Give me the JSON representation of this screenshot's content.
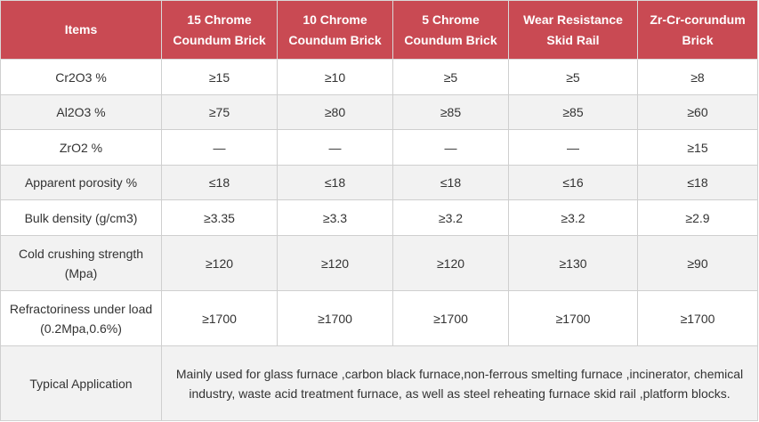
{
  "table": {
    "headers": [
      "Items",
      "15 Chrome Coundum Brick",
      "10 Chrome Coundum Brick",
      "5 Chrome Coundum Brick",
      "Wear Resistance Skid Rail",
      "Zr-Cr-corundum Brick"
    ],
    "rows": [
      {
        "label": "Cr2O3  %",
        "values": [
          "≥15",
          "≥10",
          "≥5",
          "≥5",
          "≥8"
        ]
      },
      {
        "label": "Al2O3  %",
        "values": [
          "≥75",
          "≥80",
          "≥85",
          "≥85",
          "≥60"
        ]
      },
      {
        "label": "ZrO2  %",
        "values": [
          "—",
          "—",
          "—",
          "—",
          "≥15"
        ]
      },
      {
        "label": "Apparent porosity %",
        "values": [
          "≤18",
          "≤18",
          "≤18",
          "≤16",
          "≤18"
        ]
      },
      {
        "label": "Bulk density (g/cm3)",
        "values": [
          "≥3.35",
          "≥3.3",
          "≥3.2",
          "≥3.2",
          "≥2.9"
        ]
      },
      {
        "label": "Cold crushing strength (Mpa)",
        "values": [
          "≥120",
          "≥120",
          "≥120",
          "≥130",
          "≥90"
        ]
      },
      {
        "label": "Refractoriness under load (0.2Mpa,0.6%)",
        "values": [
          "≥1700",
          "≥1700",
          "≥1700",
          "≥1700",
          "≥1700"
        ]
      }
    ],
    "application": {
      "label": "Typical Application",
      "text": "Mainly used for glass furnace ,carbon black furnace,non-ferrous smelting furnace ,incinerator, chemical industry, waste acid treatment furnace, as well as steel reheating furnace skid rail ,platform blocks."
    }
  }
}
